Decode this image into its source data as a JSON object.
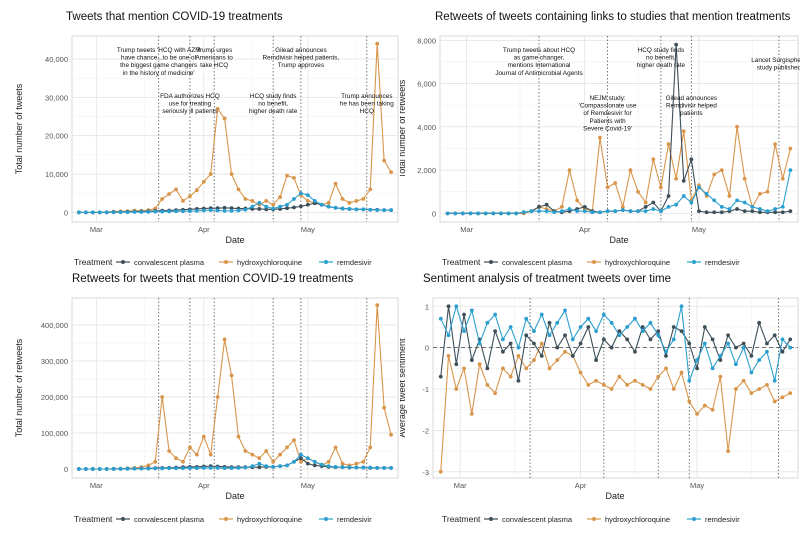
{
  "figure": {
    "legend_title": "Treatment",
    "legend_items": [
      "convalescent plasma",
      "hydroxychloroquine",
      "remdesivir"
    ]
  },
  "colors": {
    "convalescent plasma": "#3d4f58",
    "hydroxychloroquine": "#d9954a",
    "remdesivir": "#2a9fd0"
  },
  "chart_data": [
    {
      "type": "line",
      "title": "Tweets that mention COVID-19 treatments",
      "xlabel": "Date",
      "ylabel": "Total number of tweets",
      "xticks": [
        "Mar",
        "Apr",
        "May"
      ],
      "ylim": [
        -2500,
        46000
      ],
      "yticks": [
        0,
        10000,
        20000,
        30000,
        40000
      ],
      "ytick_labels": [
        "0",
        "10,000",
        "20,000",
        "30,000",
        "40,000"
      ],
      "x": [
        "02-25",
        "02-27",
        "02-29",
        "03-02",
        "03-04",
        "03-06",
        "03-08",
        "03-10",
        "03-12",
        "03-14",
        "03-16",
        "03-18",
        "03-20",
        "03-22",
        "03-24",
        "03-26",
        "03-28",
        "03-30",
        "04-01",
        "04-03",
        "04-05",
        "04-07",
        "04-09",
        "04-11",
        "04-13",
        "04-15",
        "04-17",
        "04-19",
        "04-21",
        "04-23",
        "04-25",
        "04-27",
        "04-29",
        "05-01",
        "05-03",
        "05-05",
        "05-07",
        "05-09",
        "05-11",
        "05-13",
        "05-15",
        "05-17",
        "05-19",
        "05-21",
        "05-23",
        "05-25"
      ],
      "series": [
        {
          "name": "convalescent plasma",
          "values": [
            0,
            0,
            0,
            0,
            50,
            100,
            100,
            150,
            200,
            250,
            300,
            400,
            450,
            500,
            600,
            700,
            800,
            900,
            1000,
            1100,
            1100,
            1200,
            1100,
            1000,
            1000,
            900,
            900,
            800,
            800,
            900,
            1100,
            1300,
            1600,
            2000,
            2400,
            2000,
            1500,
            1200,
            1000,
            900,
            800,
            800,
            700,
            700,
            600,
            600
          ]
        },
        {
          "name": "hydroxychloroquine",
          "values": [
            0,
            0,
            0,
            0,
            0,
            200,
            300,
            300,
            500,
            400,
            600,
            1000,
            3500,
            4800,
            6000,
            3000,
            4200,
            5800,
            8000,
            10000,
            27000,
            24500,
            10000,
            6000,
            3500,
            3000,
            2000,
            3000,
            2000,
            4000,
            9600,
            9000,
            4500,
            3000,
            2500,
            2000,
            2500,
            7500,
            3500,
            2500,
            3000,
            3500,
            6000,
            44000,
            13500,
            10500
          ]
        },
        {
          "name": "remdesivir",
          "values": [
            0,
            0,
            0,
            0,
            0,
            0,
            50,
            50,
            100,
            100,
            150,
            200,
            200,
            250,
            300,
            300,
            350,
            400,
            500,
            600,
            500,
            400,
            400,
            500,
            700,
            1500,
            2500,
            1500,
            1000,
            1500,
            2000,
            3500,
            5000,
            4500,
            3000,
            2000,
            1500,
            1200,
            1000,
            900,
            800,
            800,
            700,
            600,
            600,
            600
          ]
        }
      ],
      "annotations": [
        {
          "x": "03-19",
          "text": "Trump tweets 'HCQ with AZM\nhave chance...to be one of\nthe biggest game changers\nin the history of medicine'"
        },
        {
          "x": "03-28",
          "text": "FDA authorizes HCQ\nuse for treating\nseriously ill patients"
        },
        {
          "x": "04-04",
          "text": "Trump urges\nAmericans to\ntake HCQ"
        },
        {
          "x": "04-21",
          "text": "HCQ study finds\nno benefit,\nhigher death rate"
        },
        {
          "x": "04-29",
          "text": "Gilead announces\nRemdivisir helped patients,\nTrump approves"
        },
        {
          "x": "05-18",
          "text": "Trump announces\nhe has been taking\nHCQ"
        }
      ]
    },
    {
      "type": "line",
      "title": "Retweets of tweets containing links to studies that mention treatments",
      "xlabel": "Date",
      "ylabel": "Total number of retweets",
      "xticks": [
        "Mar",
        "Apr",
        "May"
      ],
      "ylim": [
        -400,
        8200
      ],
      "yticks": [
        0,
        2000,
        4000,
        6000,
        8000
      ],
      "ytick_labels": [
        "0",
        "2,000",
        "4,000",
        "6,000",
        "8,000"
      ],
      "x": [
        "02-25",
        "02-27",
        "02-29",
        "03-02",
        "03-04",
        "03-06",
        "03-08",
        "03-10",
        "03-12",
        "03-14",
        "03-16",
        "03-18",
        "03-20",
        "03-22",
        "03-24",
        "03-26",
        "03-28",
        "03-30",
        "04-01",
        "04-03",
        "04-05",
        "04-07",
        "04-09",
        "04-11",
        "04-13",
        "04-15",
        "04-17",
        "04-19",
        "04-21",
        "04-23",
        "04-25",
        "04-27",
        "04-29",
        "05-01",
        "05-03",
        "05-05",
        "05-07",
        "05-09",
        "05-11",
        "05-13",
        "05-15",
        "05-17",
        "05-19",
        "05-21",
        "05-23",
        "05-25"
      ],
      "series": [
        {
          "name": "convalescent plasma",
          "values": [
            0,
            0,
            0,
            0,
            0,
            0,
            0,
            0,
            0,
            0,
            50,
            100,
            300,
            400,
            100,
            50,
            100,
            200,
            300,
            100,
            50,
            100,
            100,
            150,
            100,
            100,
            300,
            500,
            100,
            800,
            7800,
            1500,
            2500,
            100,
            50,
            50,
            50,
            100,
            200,
            100,
            100,
            50,
            50,
            50,
            50,
            100
          ]
        },
        {
          "name": "hydroxychloroquine",
          "values": [
            0,
            0,
            0,
            0,
            0,
            0,
            0,
            0,
            0,
            0,
            0,
            100,
            300,
            200,
            100,
            300,
            2000,
            600,
            200,
            100,
            3500,
            1200,
            1400,
            300,
            2000,
            1000,
            500,
            2500,
            1200,
            3200,
            1600,
            3800,
            600,
            1300,
            800,
            1800,
            2000,
            800,
            4000,
            1600,
            300,
            900,
            1000,
            3200,
            1600,
            3000
          ]
        },
        {
          "name": "remdesivir",
          "values": [
            0,
            0,
            0,
            0,
            0,
            0,
            0,
            0,
            0,
            0,
            50,
            100,
            100,
            100,
            50,
            100,
            200,
            100,
            100,
            50,
            50,
            100,
            100,
            150,
            100,
            100,
            100,
            200,
            100,
            300,
            400,
            800,
            500,
            1200,
            900,
            600,
            300,
            200,
            600,
            500,
            300,
            200,
            100,
            200,
            300,
            2000
          ]
        }
      ],
      "annotations": [
        {
          "x": "03-20",
          "text": "Trump tweets about HCQ\nas game changer,\nmentions International\nJournal of Antimicrobial Agents"
        },
        {
          "x": "04-07",
          "text": "NEJM study:\n'Compassionate use\nof Remdesivir for\nPatients with\nSevere Covid-19'"
        },
        {
          "x": "04-21",
          "text": "HCQ study finds\nno benefit,\nhigher death rate"
        },
        {
          "x": "04-29",
          "text": "Gilead announces\nRemdivisir helped\npatients"
        },
        {
          "x": "05-22",
          "text": "Lancet Surgisphere\nstudy published"
        }
      ]
    },
    {
      "type": "line",
      "title": "Retweets for tweets that mention COVID-19 treatments",
      "xlabel": "Date",
      "ylabel": "Total number of retweets",
      "xticks": [
        "Mar",
        "Apr",
        "May"
      ],
      "ylim": [
        -25000,
        475000
      ],
      "yticks": [
        0,
        100000,
        200000,
        300000,
        400000
      ],
      "ytick_labels": [
        "0",
        "100,000",
        "200,000",
        "300,000",
        "400,000"
      ],
      "x": [
        "02-25",
        "02-27",
        "02-29",
        "03-02",
        "03-04",
        "03-06",
        "03-08",
        "03-10",
        "03-12",
        "03-14",
        "03-16",
        "03-18",
        "03-20",
        "03-22",
        "03-24",
        "03-26",
        "03-28",
        "03-30",
        "04-01",
        "04-03",
        "04-05",
        "04-07",
        "04-09",
        "04-11",
        "04-13",
        "04-15",
        "04-17",
        "04-19",
        "04-21",
        "04-23",
        "04-25",
        "04-27",
        "04-29",
        "05-01",
        "05-03",
        "05-05",
        "05-07",
        "05-09",
        "05-11",
        "05-13",
        "05-15",
        "05-17",
        "05-19",
        "05-21",
        "05-23",
        "05-25"
      ],
      "series": [
        {
          "name": "convalescent plasma",
          "values": [
            0,
            0,
            0,
            0,
            0,
            500,
            500,
            1000,
            1000,
            1500,
            2000,
            2500,
            3000,
            3500,
            4000,
            5000,
            6000,
            6000,
            7000,
            8000,
            7000,
            6000,
            5000,
            5000,
            5000,
            5000,
            5000,
            6000,
            6000,
            8000,
            10000,
            20000,
            30000,
            15000,
            10000,
            8000,
            6000,
            5000,
            5000,
            4000,
            4000,
            4000,
            3000,
            3000,
            3000,
            3000
          ]
        },
        {
          "name": "hydroxychloroquine",
          "values": [
            0,
            0,
            0,
            0,
            0,
            0,
            1000,
            2000,
            3000,
            5000,
            10000,
            20000,
            200000,
            50000,
            30000,
            20000,
            60000,
            40000,
            90000,
            40000,
            200000,
            360000,
            260000,
            90000,
            50000,
            40000,
            30000,
            50000,
            20000,
            40000,
            60000,
            80000,
            20000,
            30000,
            20000,
            10000,
            20000,
            60000,
            15000,
            10000,
            15000,
            20000,
            60000,
            455000,
            170000,
            95000
          ]
        },
        {
          "name": "remdesivir",
          "values": [
            0,
            0,
            0,
            0,
            0,
            0,
            500,
            500,
            1000,
            1000,
            1000,
            1500,
            1500,
            2000,
            2000,
            2000,
            2500,
            2500,
            3000,
            3000,
            3000,
            2500,
            2500,
            3000,
            4000,
            8000,
            15000,
            8000,
            6000,
            8000,
            10000,
            20000,
            40000,
            30000,
            20000,
            12000,
            8000,
            6000,
            5000,
            5000,
            4000,
            4000,
            4000,
            3000,
            3000,
            3000
          ]
        }
      ],
      "annotation_dates": [
        "03-19",
        "03-28",
        "04-04",
        "04-21",
        "04-29",
        "05-18"
      ]
    },
    {
      "type": "line",
      "title": "Sentiment analysis of treatment tweets over time",
      "xlabel": "Date",
      "ylabel": "Average tweet sentiment",
      "xticks": [
        "Mar",
        "Apr",
        "May"
      ],
      "ylim": [
        -3.15,
        1.2
      ],
      "yticks": [
        -3,
        -2,
        -1,
        0,
        1
      ],
      "ytick_labels": [
        "-3",
        "-2",
        "-1",
        "0",
        "1"
      ],
      "reference_line": 0,
      "x": [
        "02-25",
        "02-27",
        "02-29",
        "03-02",
        "03-04",
        "03-06",
        "03-08",
        "03-10",
        "03-12",
        "03-14",
        "03-16",
        "03-18",
        "03-20",
        "03-22",
        "03-24",
        "03-26",
        "03-28",
        "03-30",
        "04-01",
        "04-03",
        "04-05",
        "04-07",
        "04-09",
        "04-11",
        "04-13",
        "04-15",
        "04-17",
        "04-19",
        "04-21",
        "04-23",
        "04-25",
        "04-27",
        "04-29",
        "05-01",
        "05-03",
        "05-05",
        "05-07",
        "05-09",
        "05-11",
        "05-13",
        "05-15",
        "05-17",
        "05-19",
        "05-21",
        "05-23",
        "05-25"
      ],
      "series": [
        {
          "name": "convalescent plasma",
          "values": [
            -0.7,
            1.0,
            -0.4,
            0.8,
            -0.3,
            0.2,
            -0.5,
            0.4,
            -0.1,
            0.1,
            -0.8,
            0.3,
            0.1,
            -0.2,
            0.6,
            0.0,
            0.3,
            -0.2,
            0.1,
            0.5,
            -0.3,
            0.2,
            0.0,
            0.4,
            0.2,
            -0.1,
            0.5,
            0.2,
            0.4,
            -0.2,
            0.5,
            0.4,
            0.1,
            -0.5,
            0.5,
            0.2,
            -0.3,
            0.3,
            0.0,
            0.1,
            -0.2,
            0.6,
            0.1,
            0.3,
            -0.1,
            0.2
          ]
        },
        {
          "name": "hydroxychloroquine",
          "values": [
            -3.0,
            -0.2,
            -1.0,
            -0.5,
            -1.6,
            -0.4,
            -0.9,
            -1.1,
            -0.5,
            -0.7,
            -0.2,
            -0.5,
            -0.3,
            0.1,
            -0.5,
            -0.3,
            -0.1,
            -0.2,
            -0.6,
            -0.9,
            -0.8,
            -0.9,
            -1.0,
            -0.7,
            -0.9,
            -0.8,
            -0.9,
            -1.0,
            -0.7,
            -0.5,
            -1.0,
            -0.6,
            -1.3,
            -1.6,
            -1.4,
            -1.5,
            -0.7,
            -2.5,
            -1.0,
            -0.8,
            -1.1,
            -1.0,
            -0.9,
            -1.3,
            -1.2,
            -1.1
          ]
        },
        {
          "name": "remdesivir",
          "values": [
            0.7,
            0.3,
            1.0,
            0.4,
            0.9,
            0.1,
            0.6,
            0.8,
            0.2,
            0.5,
            0.0,
            0.7,
            0.4,
            0.8,
            0.3,
            0.6,
            0.9,
            0.2,
            0.5,
            0.7,
            0.4,
            0.8,
            0.6,
            0.3,
            0.5,
            0.7,
            0.4,
            0.6,
            0.3,
            -0.1,
            0.2,
            1.0,
            -0.8,
            -0.3,
            0.1,
            -0.5,
            -0.2,
            0.1,
            -0.4,
            0.0,
            -0.6,
            -0.3,
            -0.1,
            -0.8,
            0.2,
            0.0
          ]
        }
      ],
      "annotation_dates": [
        "03-19",
        "04-07",
        "04-21",
        "04-29",
        "05-22"
      ]
    }
  ]
}
